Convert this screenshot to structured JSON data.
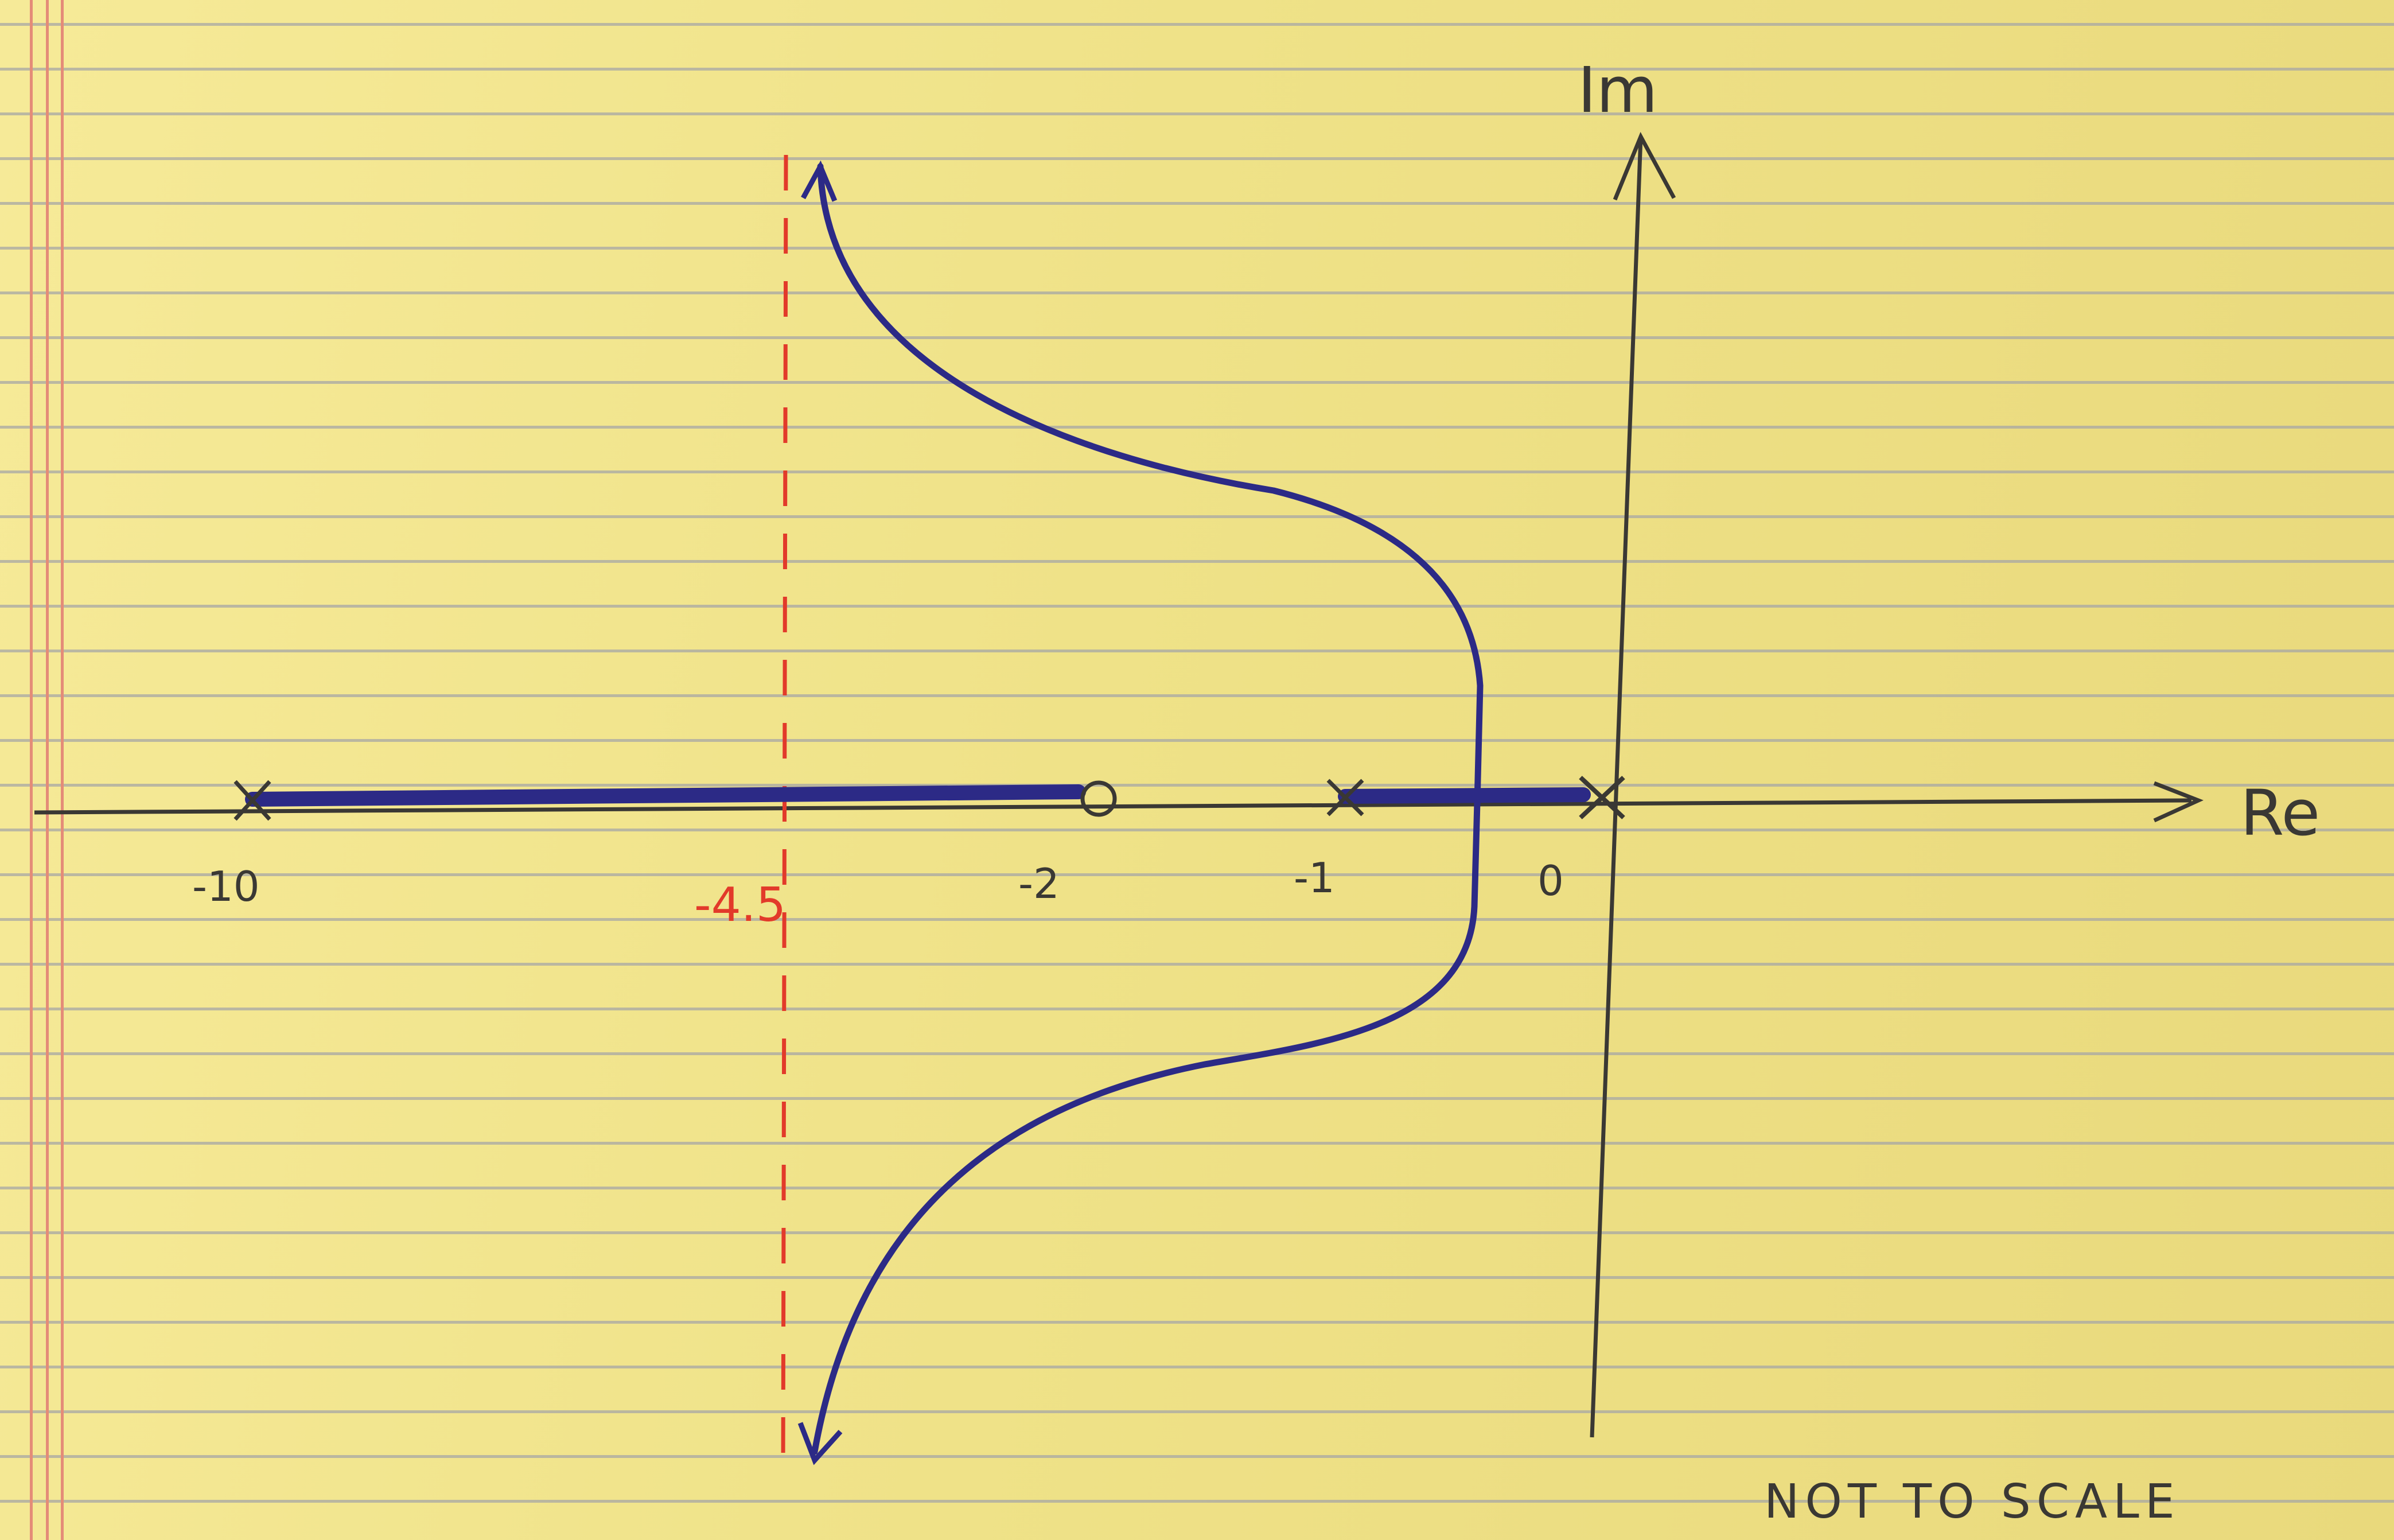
{
  "axes": {
    "real_label": "Re",
    "imag_label": "Im"
  },
  "tick_labels": {
    "minus10": "-10",
    "minus2": "-2",
    "minus1": "-1",
    "zero": "0"
  },
  "asymptote": {
    "label": "-4.5",
    "color": "#e23a2a"
  },
  "note": "NOT TO SCALE",
  "colors": {
    "ink_blue": "#2c2a86",
    "ink_black": "#3a3834",
    "paper": "#f1e58e"
  }
}
